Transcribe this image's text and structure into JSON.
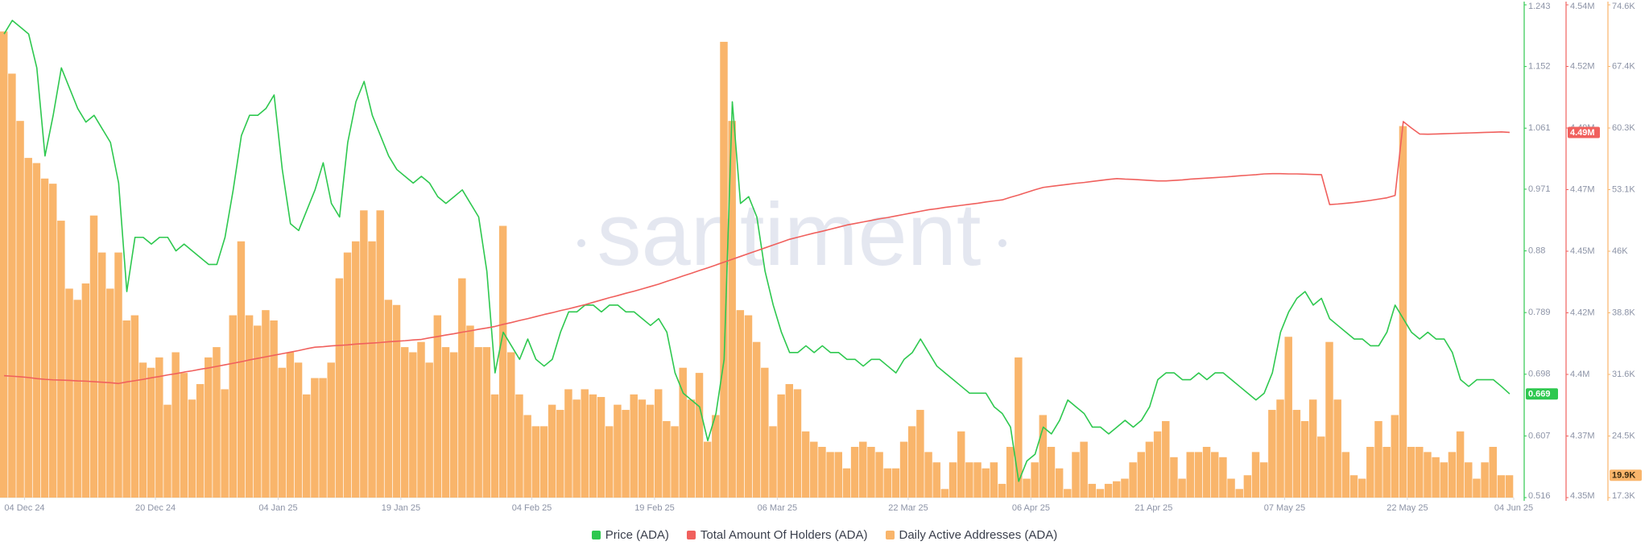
{
  "chart_data": {
    "type": "combo",
    "watermark": "santiment",
    "x": [
      "2024-12-01",
      "2024-12-02",
      "2024-12-03",
      "2024-12-04",
      "2024-12-05",
      "2024-12-06",
      "2024-12-07",
      "2024-12-08",
      "2024-12-09",
      "2024-12-10",
      "2024-12-11",
      "2024-12-12",
      "2024-12-13",
      "2024-12-14",
      "2024-12-15",
      "2024-12-16",
      "2024-12-17",
      "2024-12-18",
      "2024-12-19",
      "2024-12-20",
      "2024-12-21",
      "2024-12-22",
      "2024-12-23",
      "2024-12-24",
      "2024-12-25",
      "2024-12-26",
      "2024-12-27",
      "2024-12-28",
      "2024-12-29",
      "2024-12-30",
      "2024-12-31",
      "2025-01-01",
      "2025-01-02",
      "2025-01-03",
      "2025-01-04",
      "2025-01-05",
      "2025-01-06",
      "2025-01-07",
      "2025-01-08",
      "2025-01-09",
      "2025-01-10",
      "2025-01-11",
      "2025-01-12",
      "2025-01-13",
      "2025-01-14",
      "2025-01-15",
      "2025-01-16",
      "2025-01-17",
      "2025-01-18",
      "2025-01-19",
      "2025-01-20",
      "2025-01-21",
      "2025-01-22",
      "2025-01-23",
      "2025-01-24",
      "2025-01-25",
      "2025-01-26",
      "2025-01-27",
      "2025-01-28",
      "2025-01-29",
      "2025-01-30",
      "2025-01-31",
      "2025-02-01",
      "2025-02-02",
      "2025-02-03",
      "2025-02-04",
      "2025-02-05",
      "2025-02-06",
      "2025-02-07",
      "2025-02-08",
      "2025-02-09",
      "2025-02-10",
      "2025-02-11",
      "2025-02-12",
      "2025-02-13",
      "2025-02-14",
      "2025-02-15",
      "2025-02-16",
      "2025-02-17",
      "2025-02-18",
      "2025-02-19",
      "2025-02-20",
      "2025-02-21",
      "2025-02-22",
      "2025-02-23",
      "2025-02-24",
      "2025-02-25",
      "2025-02-26",
      "2025-02-27",
      "2025-02-28",
      "2025-03-01",
      "2025-03-02",
      "2025-03-03",
      "2025-03-04",
      "2025-03-05",
      "2025-03-06",
      "2025-03-07",
      "2025-03-08",
      "2025-03-09",
      "2025-03-10",
      "2025-03-11",
      "2025-03-12",
      "2025-03-13",
      "2025-03-14",
      "2025-03-15",
      "2025-03-16",
      "2025-03-17",
      "2025-03-18",
      "2025-03-19",
      "2025-03-20",
      "2025-03-21",
      "2025-03-22",
      "2025-03-23",
      "2025-03-24",
      "2025-03-25",
      "2025-03-26",
      "2025-03-27",
      "2025-03-28",
      "2025-03-29",
      "2025-03-30",
      "2025-03-31",
      "2025-04-01",
      "2025-04-02",
      "2025-04-03",
      "2025-04-04",
      "2025-04-05",
      "2025-04-06",
      "2025-04-07",
      "2025-04-08",
      "2025-04-09",
      "2025-04-10",
      "2025-04-11",
      "2025-04-12",
      "2025-04-13",
      "2025-04-14",
      "2025-04-15",
      "2025-04-16",
      "2025-04-17",
      "2025-04-18",
      "2025-04-19",
      "2025-04-20",
      "2025-04-21",
      "2025-04-22",
      "2025-04-23",
      "2025-04-24",
      "2025-04-25",
      "2025-04-26",
      "2025-04-27",
      "2025-04-28",
      "2025-04-29",
      "2025-04-30",
      "2025-05-01",
      "2025-05-02",
      "2025-05-03",
      "2025-05-04",
      "2025-05-05",
      "2025-05-06",
      "2025-05-07",
      "2025-05-08",
      "2025-05-09",
      "2025-05-10",
      "2025-05-11",
      "2025-05-12",
      "2025-05-13",
      "2025-05-14",
      "2025-05-15",
      "2025-05-16",
      "2025-05-17",
      "2025-05-18",
      "2025-05-19",
      "2025-05-20",
      "2025-05-21",
      "2025-05-22",
      "2025-05-23",
      "2025-05-24",
      "2025-05-25",
      "2025-05-26",
      "2025-05-27",
      "2025-05-28",
      "2025-05-29",
      "2025-05-30",
      "2025-05-31",
      "2025-06-01",
      "2025-06-02",
      "2025-06-03"
    ],
    "xlim": [
      "2024-12-01",
      "2025-06-04"
    ],
    "xticks": [
      {
        "value": "2024-12-04",
        "label": "04 Dec 24"
      },
      {
        "value": "2024-12-20",
        "label": "20 Dec 24"
      },
      {
        "value": "2025-01-04",
        "label": "04 Jan 25"
      },
      {
        "value": "2025-01-19",
        "label": "19 Jan 25"
      },
      {
        "value": "2025-02-04",
        "label": "04 Feb 25"
      },
      {
        "value": "2025-02-19",
        "label": "19 Feb 25"
      },
      {
        "value": "2025-03-06",
        "label": "06 Mar 25"
      },
      {
        "value": "2025-03-22",
        "label": "22 Mar 25"
      },
      {
        "value": "2025-04-06",
        "label": "06 Apr 25"
      },
      {
        "value": "2025-04-21",
        "label": "21 Apr 25"
      },
      {
        "value": "2025-05-07",
        "label": "07 May 25"
      },
      {
        "value": "2025-05-22",
        "label": "22 May 25"
      },
      {
        "value": "2025-06-04",
        "label": "04 Jun 25"
      }
    ],
    "ylim": [
      0.516,
      1.243
    ],
    "yticks": [
      0.516,
      0.607,
      0.698,
      0.789,
      0.88,
      0.971,
      1.061,
      1.152,
      1.243
    ],
    "y2lim": [
      4350000,
      4540000
    ],
    "y2ticks": [
      {
        "value": 4350000,
        "label": "4.35M"
      },
      {
        "value": 4373750,
        "label": "4.37M"
      },
      {
        "value": 4397500,
        "label": "4.4M"
      },
      {
        "value": 4421250,
        "label": "4.42M"
      },
      {
        "value": 4445000,
        "label": "4.45M"
      },
      {
        "value": 4468750,
        "label": "4.47M"
      },
      {
        "value": 4492500,
        "label": "4.49M"
      },
      {
        "value": 4516250,
        "label": "4.52M"
      },
      {
        "value": 4540000,
        "label": "4.54M"
      }
    ],
    "y3lim": [
      17300,
      74600
    ],
    "y3ticks": [
      {
        "value": 17300,
        "label": "17.3K"
      },
      {
        "value": 24463,
        "label": "24.5K"
      },
      {
        "value": 31625,
        "label": "31.6K"
      },
      {
        "value": 38788,
        "label": "38.8K"
      },
      {
        "value": 45950,
        "label": "46K"
      },
      {
        "value": 53113,
        "label": "53.1K"
      },
      {
        "value": 60275,
        "label": "60.3K"
      },
      {
        "value": 67438,
        "label": "67.4K"
      },
      {
        "value": 74600,
        "label": "74.6K"
      }
    ],
    "series": [
      {
        "name": "Price (ADA)",
        "type": "line",
        "axis": "y",
        "color": "#2ec84f",
        "current_label": "0.669",
        "values": [
          1.2,
          1.22,
          1.21,
          1.2,
          1.15,
          1.02,
          1.08,
          1.15,
          1.12,
          1.09,
          1.07,
          1.08,
          1.06,
          1.04,
          0.98,
          0.82,
          0.9,
          0.9,
          0.89,
          0.9,
          0.9,
          0.88,
          0.89,
          0.88,
          0.87,
          0.86,
          0.86,
          0.9,
          0.97,
          1.05,
          1.08,
          1.08,
          1.09,
          1.11,
          1.0,
          0.92,
          0.91,
          0.94,
          0.97,
          1.01,
          0.95,
          0.93,
          1.04,
          1.1,
          1.13,
          1.08,
          1.05,
          1.02,
          1.0,
          0.99,
          0.98,
          0.99,
          0.98,
          0.96,
          0.95,
          0.96,
          0.97,
          0.95,
          0.93,
          0.85,
          0.7,
          0.76,
          0.74,
          0.72,
          0.75,
          0.72,
          0.71,
          0.72,
          0.76,
          0.79,
          0.79,
          0.8,
          0.8,
          0.79,
          0.8,
          0.8,
          0.79,
          0.79,
          0.78,
          0.77,
          0.78,
          0.76,
          0.7,
          0.67,
          0.66,
          0.65,
          0.6,
          0.64,
          0.72,
          1.1,
          0.95,
          0.96,
          0.93,
          0.85,
          0.8,
          0.76,
          0.73,
          0.73,
          0.74,
          0.73,
          0.74,
          0.73,
          0.73,
          0.72,
          0.72,
          0.71,
          0.72,
          0.72,
          0.71,
          0.7,
          0.72,
          0.73,
          0.75,
          0.73,
          0.71,
          0.7,
          0.69,
          0.68,
          0.67,
          0.67,
          0.67,
          0.65,
          0.64,
          0.62,
          0.54,
          0.57,
          0.58,
          0.62,
          0.61,
          0.63,
          0.66,
          0.65,
          0.64,
          0.62,
          0.62,
          0.61,
          0.62,
          0.63,
          0.62,
          0.63,
          0.65,
          0.69,
          0.7,
          0.7,
          0.69,
          0.69,
          0.7,
          0.69,
          0.7,
          0.7,
          0.69,
          0.68,
          0.67,
          0.66,
          0.67,
          0.7,
          0.76,
          0.79,
          0.81,
          0.82,
          0.8,
          0.81,
          0.78,
          0.77,
          0.76,
          0.75,
          0.75,
          0.74,
          0.74,
          0.76,
          0.8,
          0.78,
          0.76,
          0.75,
          0.76,
          0.75,
          0.75,
          0.73,
          0.69,
          0.68,
          0.69,
          0.69,
          0.69,
          0.68,
          0.669
        ]
      },
      {
        "name": "Total Amount Of Holders (ADA)",
        "type": "line",
        "axis": "y2",
        "color": "#f0605d",
        "current_label": "4.49M",
        "values": [
          4397000,
          4396800,
          4396600,
          4396300,
          4395900,
          4395600,
          4395400,
          4395300,
          4395200,
          4395000,
          4394900,
          4394700,
          4394500,
          4394300,
          4394000,
          4394600,
          4395100,
          4395600,
          4396200,
          4396700,
          4397300,
          4397800,
          4398400,
          4398900,
          4399500,
          4400000,
          4400600,
          4401200,
          4401800,
          4402400,
          4403100,
          4403700,
          4404300,
          4404900,
          4405500,
          4406100,
          4406700,
          4407400,
          4408000,
          4408200,
          4408500,
          4408700,
          4408900,
          4409200,
          4409400,
          4409600,
          4409800,
          4410100,
          4410300,
          4410500,
          4410800,
          4411000,
          4411600,
          4412100,
          4412700,
          4413200,
          4413800,
          4414300,
          4414900,
          4415400,
          4416000,
          4416800,
          4417500,
          4418300,
          4419000,
          4419800,
          4420600,
          4421300,
          4422100,
          4422800,
          4423600,
          4424400,
          4425300,
          4426200,
          4427100,
          4427900,
          4428800,
          4429600,
          4430500,
          4431400,
          4432300,
          4433400,
          4434400,
          4435500,
          4436500,
          4437600,
          4438600,
          4439700,
          4440800,
          4441900,
          4443000,
          4444100,
          4445200,
          4446300,
          4447400,
          4448500,
          4449600,
          4450400,
          4451200,
          4452000,
          4452700,
          4453500,
          4454300,
          4455100,
          4455700,
          4456300,
          4456900,
          4457500,
          4458000,
          4458600,
          4459200,
          4459800,
          4460400,
          4461000,
          4461400,
          4461900,
          4462300,
          4462700,
          4463100,
          4463500,
          4464000,
          4464400,
          4464800,
          4465800,
          4466700,
          4467700,
          4468700,
          4469600,
          4470000,
          4470400,
          4470800,
          4471200,
          4471500,
          4471900,
          4472300,
          4472700,
          4473000,
          4472800,
          4472700,
          4472500,
          4472300,
          4472100,
          4472100,
          4472300,
          4472500,
          4472800,
          4473000,
          4473200,
          4473400,
          4473600,
          4473800,
          4474100,
          4474300,
          4474500,
          4474800,
          4474900,
          4474900,
          4474800,
          4474800,
          4474700,
          4474600,
          4474500,
          4463000,
          4463200,
          4463500,
          4463800,
          4464200,
          4464600,
          4465100,
          4465600,
          4466500,
          4495000,
          4492500,
          4490200,
          4490100,
          4490200,
          4490300,
          4490400,
          4490500,
          4490600,
          4490700,
          4490800,
          4490900,
          4491000,
          4490800
        ]
      },
      {
        "name": "Daily Active Addresses (ADA)",
        "type": "bar",
        "axis": "y3",
        "color": "#f9b56b",
        "current_label": "19.9K",
        "values": [
          71500,
          66600,
          61100,
          56800,
          56200,
          54400,
          53800,
          49500,
          41600,
          40300,
          42200,
          50100,
          45800,
          41600,
          45800,
          37900,
          38500,
          33000,
          32400,
          33600,
          28100,
          34200,
          31800,
          28700,
          30500,
          33600,
          34800,
          29900,
          38500,
          47100,
          38500,
          37300,
          39100,
          37900,
          32400,
          34200,
          33000,
          29300,
          31200,
          31200,
          33000,
          42800,
          45800,
          47100,
          50700,
          47100,
          50700,
          40300,
          39700,
          34800,
          34200,
          35400,
          33000,
          38500,
          34800,
          34200,
          42800,
          37300,
          34800,
          34800,
          29300,
          48900,
          34200,
          29300,
          26900,
          25600,
          25600,
          28100,
          27500,
          29900,
          28700,
          29900,
          29300,
          29000,
          25600,
          28100,
          27500,
          29300,
          28700,
          28100,
          29900,
          26200,
          25600,
          32400,
          28700,
          31800,
          23800,
          26900,
          70300,
          61100,
          39100,
          38500,
          35400,
          32400,
          25600,
          29300,
          30500,
          29900,
          25000,
          23800,
          23200,
          22600,
          22600,
          20700,
          23200,
          23800,
          23200,
          22600,
          20700,
          20700,
          23800,
          25600,
          27500,
          22600,
          21400,
          18300,
          21400,
          25000,
          21400,
          21400,
          20700,
          21400,
          18900,
          23200,
          33600,
          19500,
          21400,
          26900,
          23200,
          20700,
          18300,
          22600,
          23800,
          18900,
          18300,
          18900,
          19200,
          19500,
          21400,
          22600,
          23800,
          25000,
          26200,
          22000,
          19500,
          22600,
          22600,
          23200,
          22600,
          22000,
          19500,
          18300,
          19900,
          22600,
          21400,
          27500,
          28700,
          36000,
          27500,
          26200,
          28700,
          24400,
          35400,
          28700,
          22600,
          19900,
          19500,
          23200,
          26200,
          23200,
          26900,
          60500,
          23200,
          23200,
          22600,
          22000,
          21400,
          22600,
          25000,
          21400,
          19500,
          21400,
          23200,
          19900,
          19900
        ]
      }
    ]
  }
}
